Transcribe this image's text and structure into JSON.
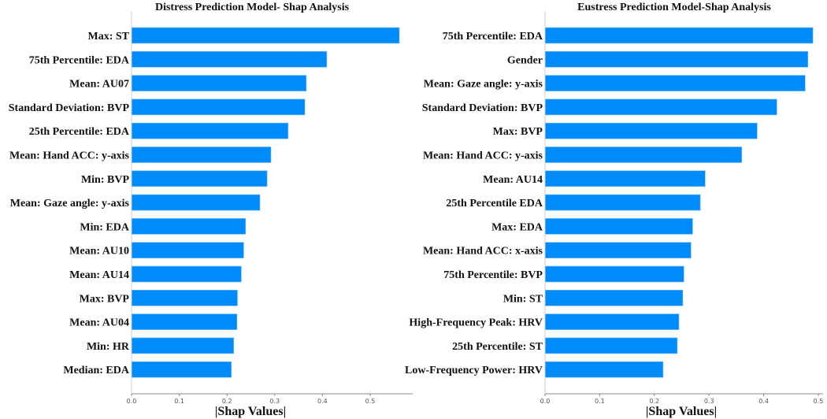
{
  "chart_data": [
    {
      "type": "bar",
      "orientation": "horizontal",
      "title": "Distress Prediction Model- Shap Analysis",
      "xlabel": "|Shap Values|",
      "ylabel": "",
      "xlim": [
        0,
        0.585
      ],
      "xticks": [
        0.0,
        0.1,
        0.2,
        0.3,
        0.4,
        0.5
      ],
      "xtick_labels": [
        "0.0",
        "0.1",
        "0.2",
        "0.3",
        "0.4",
        "0.5"
      ],
      "grid": false,
      "bar_color": "#008bfb",
      "categories": [
        "Max: ST",
        "75th Percentile: EDA",
        "Mean: AU07",
        "Standard Deviation: BVP",
        "25th Percentile: EDA",
        "Mean: Hand ACC: y-axis",
        "Min: BVP",
        "Mean: Gaze angle: y-axis",
        "Min: EDA",
        "Mean: AU10",
        "Mean: AU14",
        "Max: BVP",
        "Mean: AU04",
        "Min: HR",
        "Median: EDA"
      ],
      "values": [
        0.561,
        0.409,
        0.366,
        0.363,
        0.328,
        0.292,
        0.284,
        0.269,
        0.239,
        0.235,
        0.23,
        0.222,
        0.221,
        0.214,
        0.209
      ]
    },
    {
      "type": "bar",
      "orientation": "horizontal",
      "title": "Eustress Prediction Model-Shap Analysis",
      "xlabel": "|Shap Values|",
      "ylabel": "",
      "xlim": [
        0,
        0.51
      ],
      "xticks": [
        0.0,
        0.1,
        0.2,
        0.3,
        0.4,
        0.5
      ],
      "xtick_labels": [
        "0.0",
        "0.1",
        "0.2",
        "0.3",
        "0.4",
        "0.5"
      ],
      "grid": false,
      "bar_color": "#008bfb",
      "categories": [
        "75th Percentile: EDA",
        "Gender",
        "Mean: Gaze angle: y-axis",
        "Standard Deviation: BVP",
        "Max: BVP",
        "Mean: Hand ACC: y-axis",
        "Mean: AU14",
        "25th Percentile EDA",
        "Max: EDA",
        "Mean: Hand ACC: x-axis",
        "75th Percentile: BVP",
        "Min: ST",
        "High-Frequency Peak: HRV",
        "25th Percentile: ST",
        "Low-Frequency Power: HRV"
      ],
      "values": [
        0.49,
        0.481,
        0.476,
        0.424,
        0.388,
        0.36,
        0.293,
        0.284,
        0.27,
        0.267,
        0.254,
        0.252,
        0.245,
        0.242,
        0.216
      ]
    }
  ]
}
